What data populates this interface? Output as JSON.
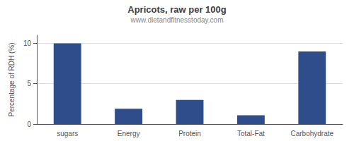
{
  "chart_data": {
    "type": "bar",
    "title": "Apricots, raw per 100g",
    "subtitle": "www.dietandfitnesstoday.com",
    "categories": [
      "sugars",
      "Energy",
      "Protein",
      "Total-Fat",
      "Carbohydrate"
    ],
    "values": [
      10.0,
      1.9,
      3.0,
      1.1,
      9.0
    ],
    "color": "#2e4d8a",
    "ylabel": "Percentage of RDH (%)",
    "ylim": [
      0,
      11
    ],
    "yticks": [
      0,
      5,
      10
    ],
    "grid": true
  }
}
